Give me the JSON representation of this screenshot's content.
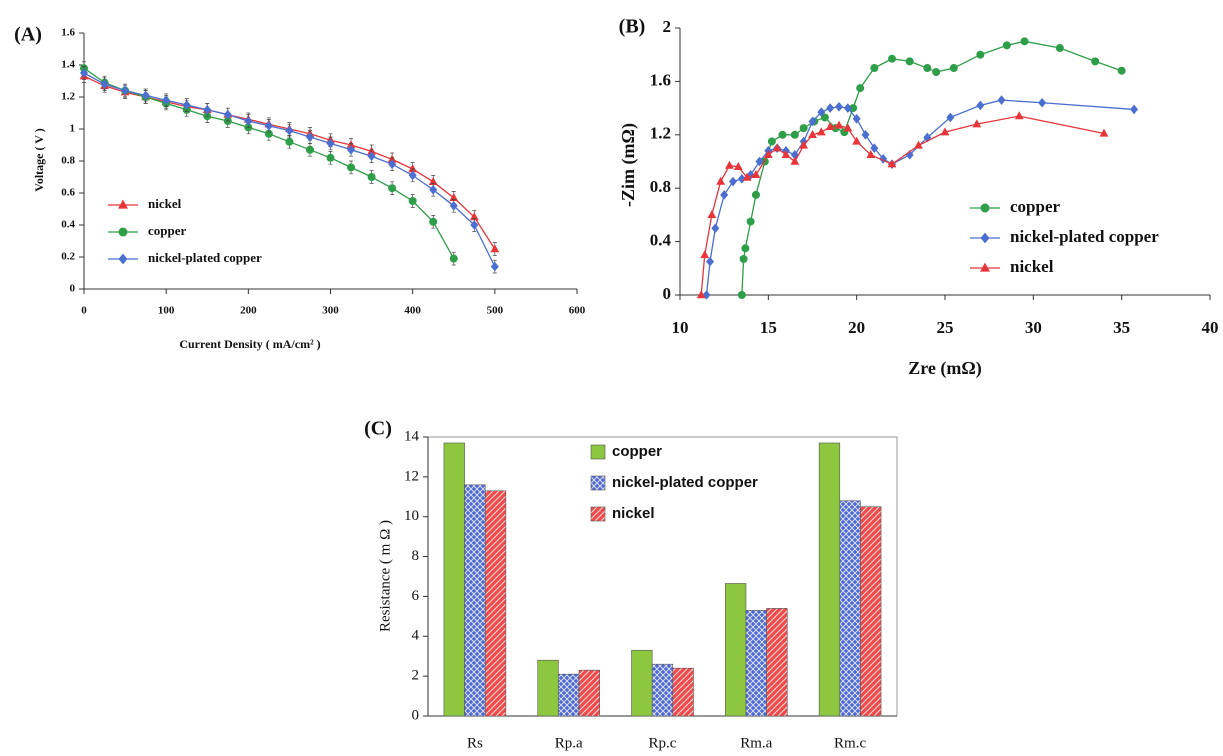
{
  "chart_data": [
    {
      "type": "line",
      "label": "(A)",
      "x_label": "Current Density ( mA/cm² )",
      "y_label": "Voltage ( V )",
      "x": [
        0,
        25,
        50,
        75,
        100,
        125,
        150,
        175,
        200,
        225,
        250,
        275,
        300,
        325,
        350,
        375,
        400,
        425,
        450,
        475,
        500
      ],
      "series": [
        {
          "name": "nickel",
          "color": "#e8353a",
          "marker": "triangle",
          "error": 0.04,
          "values": [
            1.33,
            1.27,
            1.23,
            1.2,
            1.17,
            1.14,
            1.12,
            1.09,
            1.06,
            1.03,
            1.0,
            0.97,
            0.93,
            0.9,
            0.86,
            0.81,
            0.75,
            0.67,
            0.57,
            0.45,
            0.25
          ]
        },
        {
          "name": "copper",
          "color": "#2e9e48",
          "marker": "circle",
          "error": 0.04,
          "values": [
            1.38,
            1.29,
            1.24,
            1.2,
            1.16,
            1.12,
            1.08,
            1.05,
            1.01,
            0.97,
            0.92,
            0.87,
            0.82,
            0.76,
            0.7,
            0.63,
            0.55,
            0.42,
            0.19,
            null,
            null
          ]
        },
        {
          "name": "nickel-plated copper",
          "color": "#4a6fd0",
          "marker": "diamond",
          "error": 0.04,
          "values": [
            1.35,
            1.28,
            1.24,
            1.21,
            1.18,
            1.15,
            1.12,
            1.09,
            1.05,
            1.02,
            0.99,
            0.95,
            0.91,
            0.87,
            0.83,
            0.78,
            0.71,
            0.62,
            0.52,
            0.4,
            0.14
          ]
        }
      ],
      "xlim": [
        0,
        600
      ],
      "xticks": [
        0,
        100,
        200,
        300,
        400,
        500,
        600
      ],
      "ylim": [
        0,
        1.6
      ],
      "yticks": [
        0,
        0.2,
        0.4,
        0.6,
        0.8,
        1,
        1.2,
        1.4,
        1.6
      ],
      "legend": "lower left"
    },
    {
      "type": "line",
      "label": "(B)",
      "x_label": "Zre (mΩ)",
      "y_label": "-Zim (mΩ)",
      "series": [
        {
          "name": "copper",
          "color": "#2e9e48",
          "marker": "circle",
          "x": [
            13.5,
            13.6,
            13.7,
            14,
            14.3,
            14.8,
            15.2,
            15.8,
            16.5,
            17,
            17.6,
            18.2,
            18.8,
            19.3,
            19.8,
            20.2,
            21,
            22,
            23,
            24,
            24.5,
            25.5,
            27,
            28.5,
            29.5,
            31.5,
            33.5,
            35
          ],
          "values": [
            0,
            0.27,
            0.35,
            0.55,
            0.75,
            1.0,
            1.15,
            1.2,
            1.2,
            1.25,
            1.3,
            1.33,
            1.25,
            1.22,
            1.4,
            1.55,
            1.7,
            1.77,
            1.75,
            1.7,
            1.67,
            1.7,
            1.8,
            1.87,
            1.9,
            1.85,
            1.75,
            1.68
          ]
        },
        {
          "name": "nickel-plated copper",
          "color": "#4a6fd0",
          "marker": "diamond",
          "x": [
            11.5,
            11.7,
            12,
            12.5,
            13,
            13.5,
            14,
            14.5,
            15,
            15.5,
            16,
            16.5,
            17,
            17.5,
            18,
            18.5,
            19,
            19.5,
            20,
            20.5,
            21,
            21.5,
            22,
            23,
            24,
            25.3,
            27,
            28.2,
            30.5,
            35.7
          ],
          "values": [
            0,
            0.25,
            0.5,
            0.75,
            0.85,
            0.87,
            0.9,
            1.0,
            1.08,
            1.1,
            1.08,
            1.05,
            1.15,
            1.3,
            1.37,
            1.4,
            1.41,
            1.4,
            1.32,
            1.2,
            1.1,
            1.02,
            0.98,
            1.05,
            1.18,
            1.33,
            1.42,
            1.46,
            1.44,
            1.39
          ]
        },
        {
          "name": "nickel",
          "color": "#e8353a",
          "marker": "triangle",
          "x": [
            11.2,
            11.4,
            11.8,
            12.3,
            12.8,
            13.3,
            13.8,
            14.3,
            15,
            15.5,
            16,
            16.5,
            17,
            17.5,
            18,
            18.5,
            19,
            19.5,
            20,
            20.8,
            22,
            23.5,
            25,
            26.8,
            29.2,
            34
          ],
          "values": [
            0,
            0.3,
            0.6,
            0.85,
            0.97,
            0.96,
            0.88,
            0.9,
            1.05,
            1.1,
            1.05,
            1.0,
            1.12,
            1.2,
            1.22,
            1.26,
            1.27,
            1.25,
            1.15,
            1.05,
            0.98,
            1.12,
            1.22,
            1.28,
            1.34,
            1.21
          ]
        }
      ],
      "xlim": [
        10,
        40
      ],
      "xticks": [
        10,
        15,
        20,
        25,
        30,
        35,
        40
      ],
      "ylim": [
        0,
        2
      ],
      "yticks": [
        0,
        0.4,
        0.8,
        1.2,
        1.6,
        2
      ],
      "legend": "lower right"
    },
    {
      "type": "bar",
      "label": "(C)",
      "y_label": "Resistance ( m Ω )",
      "categories": [
        "Rs",
        "Rp.a",
        "Rp.c",
        "Rm.a",
        "Rm.c"
      ],
      "series": [
        {
          "name": "copper",
          "color": "#8dc63f",
          "pattern": "solid",
          "values": [
            13.7,
            2.8,
            3.3,
            6.65,
            13.7
          ]
        },
        {
          "name": "nickel-plated copper",
          "color": "#4a6ad8",
          "pattern": "crosshatch",
          "values": [
            11.6,
            2.1,
            2.6,
            5.3,
            10.8
          ]
        },
        {
          "name": "nickel",
          "color": "#f04a4a",
          "pattern": "diagonal",
          "values": [
            11.3,
            2.3,
            2.4,
            5.4,
            10.5
          ]
        }
      ],
      "ylim": [
        0,
        14
      ],
      "yticks": [
        0,
        2,
        4,
        6,
        8,
        10,
        12,
        14
      ],
      "legend": "upper center"
    }
  ]
}
